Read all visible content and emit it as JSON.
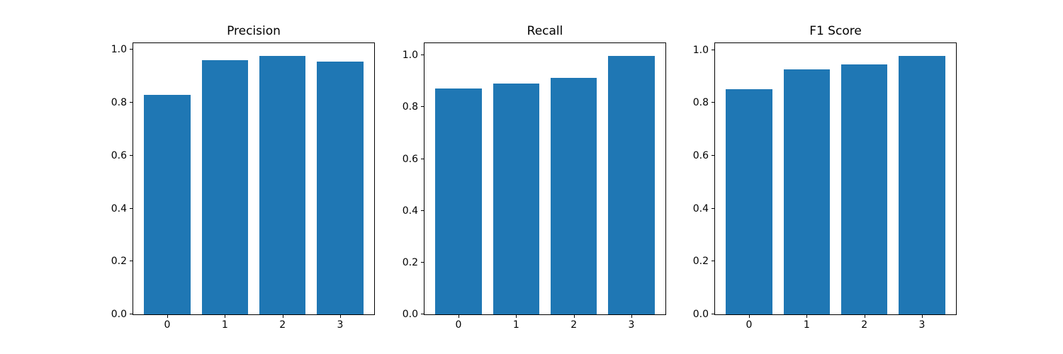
{
  "figure": {
    "background_color": "#ffffff",
    "bar_color": "#1f77b4",
    "axis_color": "#000000"
  },
  "chart_data": [
    {
      "type": "bar",
      "title": "Precision",
      "categories": [
        "0",
        "1",
        "2",
        "3"
      ],
      "values": [
        0.83,
        0.961,
        0.976,
        0.956
      ],
      "xlabel": "",
      "ylabel": "",
      "yticks": [
        0.0,
        0.2,
        0.4,
        0.6,
        0.8,
        1.0
      ],
      "ylim": [
        0,
        1.0248
      ],
      "xlim": [
        -0.59,
        3.59
      ],
      "bar_width": 0.8,
      "grid": false,
      "legend": null
    },
    {
      "type": "bar",
      "title": "Recall",
      "categories": [
        "0",
        "1",
        "2",
        "3"
      ],
      "values": [
        0.872,
        0.891,
        0.913,
        0.997
      ],
      "xlabel": "",
      "ylabel": "",
      "yticks": [
        0.0,
        0.2,
        0.4,
        0.6,
        0.8,
        1.0
      ],
      "ylim": [
        0,
        1.0469
      ],
      "xlim": [
        -0.59,
        3.59
      ],
      "bar_width": 0.8,
      "grid": false,
      "legend": null
    },
    {
      "type": "bar",
      "title": "F1 Score",
      "categories": [
        "0",
        "1",
        "2",
        "3"
      ],
      "values": [
        0.851,
        0.926,
        0.946,
        0.977
      ],
      "xlabel": "",
      "ylabel": "",
      "yticks": [
        0.0,
        0.2,
        0.4,
        0.6,
        0.8,
        1.0
      ],
      "ylim": [
        0,
        1.0259
      ],
      "xlim": [
        -0.59,
        3.59
      ],
      "bar_width": 0.8,
      "grid": false,
      "legend": null
    }
  ]
}
